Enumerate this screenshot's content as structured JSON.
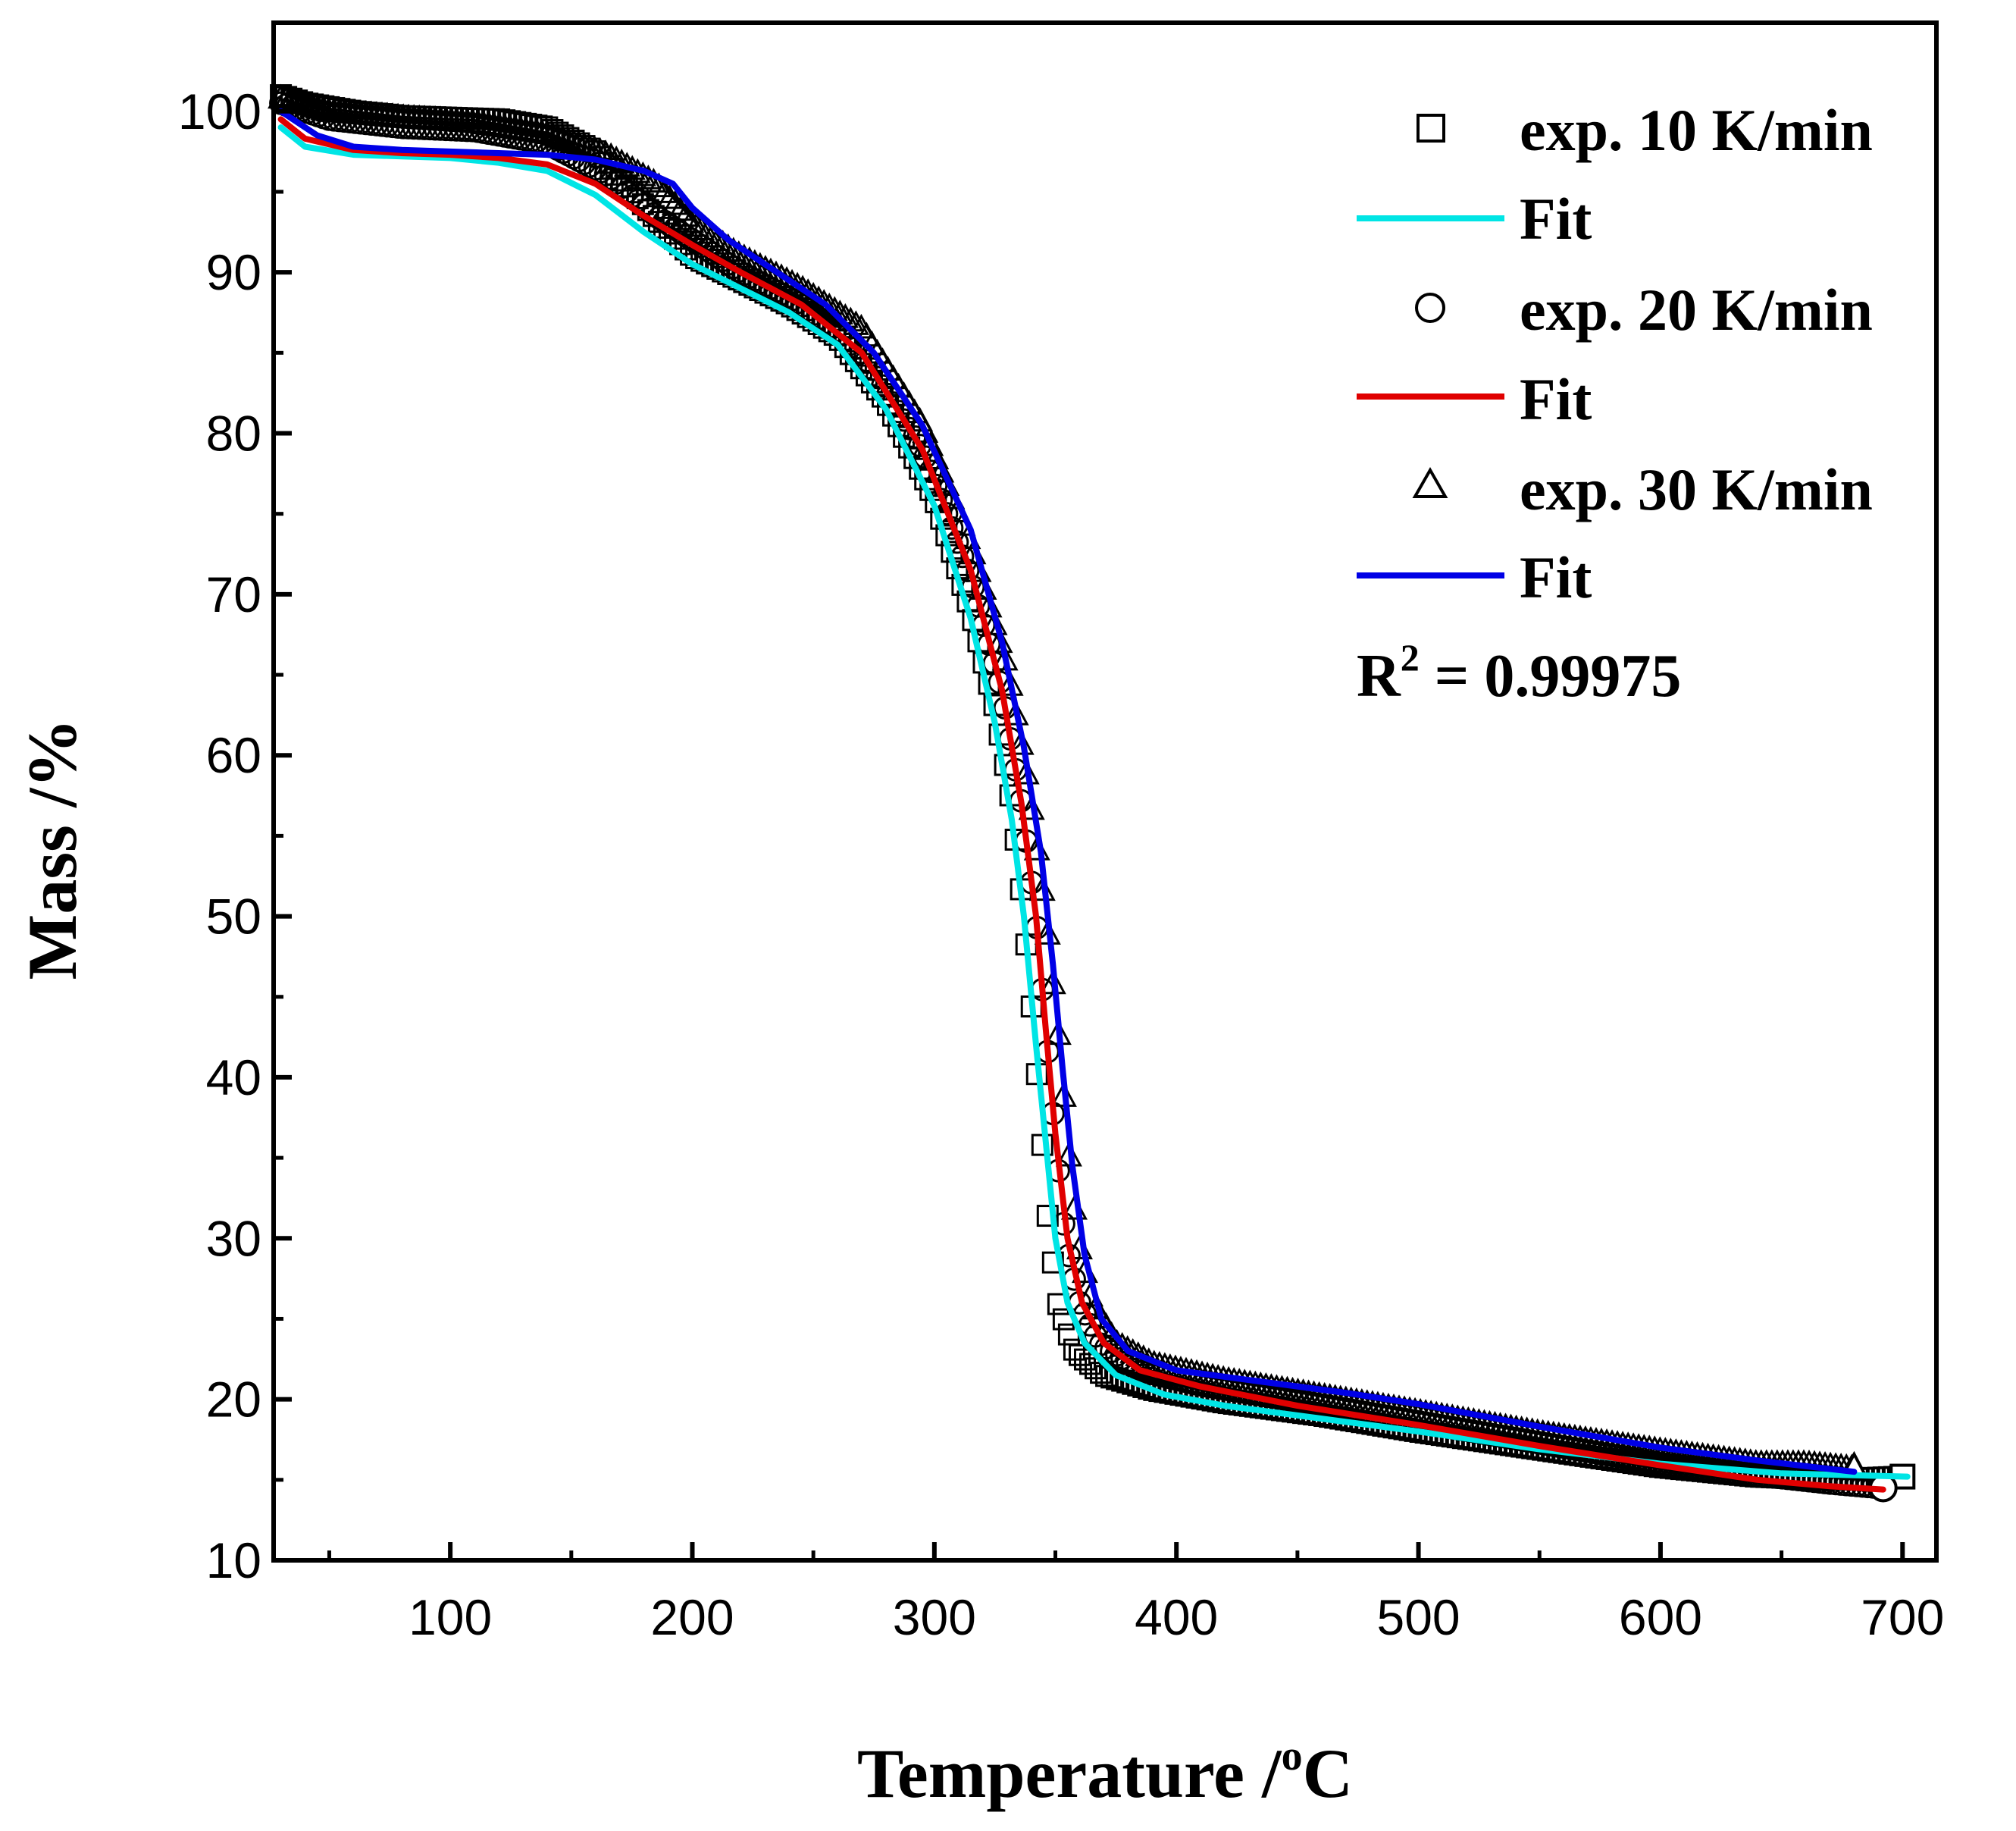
{
  "chart_data": {
    "type": "scatter",
    "title": "",
    "xlabel": {
      "main": "Temperature /",
      "sup": "o",
      "unit": "C"
    },
    "ylabel": "Mass /%",
    "xlim": [
      27,
      714
    ],
    "ylim": [
      10,
      105.5
    ],
    "xticks": [
      100,
      200,
      300,
      400,
      500,
      600,
      700
    ],
    "xticks_minor": [
      50,
      150,
      250,
      350,
      450,
      550,
      650
    ],
    "yticks": [
      10,
      20,
      30,
      40,
      50,
      60,
      70,
      80,
      90,
      100
    ],
    "grid": false,
    "legend_position": "top-right",
    "series": [
      {
        "name": "exp. 10 K/min",
        "kind": "markers",
        "marker": "square",
        "color": "#000000",
        "points": [
          [
            30,
            101
          ],
          [
            40,
            100.5
          ],
          [
            60,
            100
          ],
          [
            80,
            99.7
          ],
          [
            100,
            99.6
          ],
          [
            120,
            99.5
          ],
          [
            140,
            99
          ],
          [
            160,
            97.5
          ],
          [
            175,
            95
          ],
          [
            190,
            92.5
          ],
          [
            200,
            91
          ],
          [
            220,
            89.5
          ],
          [
            240,
            88
          ],
          [
            260,
            86
          ],
          [
            280,
            82
          ],
          [
            300,
            76
          ],
          [
            315,
            69
          ],
          [
            325,
            63
          ],
          [
            332,
            57
          ],
          [
            337,
            50
          ],
          [
            341,
            43
          ],
          [
            344,
            37
          ],
          [
            347,
            31
          ],
          [
            351,
            26
          ],
          [
            358,
            23
          ],
          [
            370,
            21.5
          ],
          [
            390,
            20.6
          ],
          [
            420,
            19.8
          ],
          [
            460,
            19
          ],
          [
            500,
            18
          ],
          [
            550,
            16.9
          ],
          [
            600,
            15.8
          ],
          [
            640,
            15.2
          ],
          [
            670,
            15
          ],
          [
            700,
            15.2
          ]
        ]
      },
      {
        "name": "Fit",
        "kind": "line",
        "color": "#00e5e5",
        "points": [
          [
            30,
            99
          ],
          [
            40,
            97.8
          ],
          [
            60,
            97.3
          ],
          [
            80,
            97.2
          ],
          [
            100,
            97.1
          ],
          [
            120,
            96.8
          ],
          [
            140,
            96.3
          ],
          [
            160,
            94.8
          ],
          [
            180,
            92.5
          ],
          [
            200,
            90.5
          ],
          [
            220,
            89
          ],
          [
            240,
            87.5
          ],
          [
            260,
            85.5
          ],
          [
            280,
            81.5
          ],
          [
            300,
            75.5
          ],
          [
            315,
            68.5
          ],
          [
            325,
            62
          ],
          [
            332,
            56
          ],
          [
            337,
            50
          ],
          [
            342,
            42
          ],
          [
            346,
            36
          ],
          [
            350,
            30
          ],
          [
            355,
            26
          ],
          [
            362,
            23.5
          ],
          [
            375,
            21.5
          ],
          [
            395,
            20.3
          ],
          [
            420,
            19.6
          ],
          [
            460,
            18.8
          ],
          [
            500,
            18
          ],
          [
            550,
            16.9
          ],
          [
            600,
            16
          ],
          [
            650,
            15.4
          ],
          [
            702,
            15.2
          ]
        ]
      },
      {
        "name": "exp. 20 K/min",
        "kind": "markers",
        "marker": "circle",
        "color": "#000000",
        "points": [
          [
            30,
            100.5
          ],
          [
            50,
            99.5
          ],
          [
            80,
            99
          ],
          [
            110,
            98.8
          ],
          [
            140,
            98
          ],
          [
            165,
            96
          ],
          [
            185,
            93.5
          ],
          [
            200,
            92
          ],
          [
            220,
            90
          ],
          [
            245,
            88
          ],
          [
            270,
            85
          ],
          [
            295,
            79
          ],
          [
            315,
            71
          ],
          [
            328,
            64
          ],
          [
            336,
            57
          ],
          [
            342,
            50
          ],
          [
            346,
            43
          ],
          [
            350,
            36
          ],
          [
            354,
            30
          ],
          [
            360,
            26
          ],
          [
            368,
            23.5
          ],
          [
            385,
            21.8
          ],
          [
            410,
            20.9
          ],
          [
            450,
            19.9
          ],
          [
            500,
            18.6
          ],
          [
            550,
            17.3
          ],
          [
            600,
            16
          ],
          [
            640,
            15.3
          ],
          [
            670,
            14.8
          ],
          [
            692,
            14.5
          ]
        ]
      },
      {
        "name": "Fit",
        "kind": "line",
        "color": "#e00000",
        "points": [
          [
            30,
            99.5
          ],
          [
            40,
            98.3
          ],
          [
            60,
            97.6
          ],
          [
            80,
            97.4
          ],
          [
            100,
            97.3
          ],
          [
            120,
            97.1
          ],
          [
            140,
            96.7
          ],
          [
            160,
            95.5
          ],
          [
            180,
            93.5
          ],
          [
            200,
            91.7
          ],
          [
            220,
            90
          ],
          [
            245,
            88
          ],
          [
            270,
            85
          ],
          [
            295,
            79
          ],
          [
            315,
            71.5
          ],
          [
            328,
            64
          ],
          [
            336,
            57
          ],
          [
            342,
            50
          ],
          [
            346,
            43
          ],
          [
            350,
            36.5
          ],
          [
            355,
            30
          ],
          [
            361,
            26
          ],
          [
            370,
            23.5
          ],
          [
            385,
            21.8
          ],
          [
            410,
            20.8
          ],
          [
            450,
            19.6
          ],
          [
            500,
            18.4
          ],
          [
            550,
            17.1
          ],
          [
            600,
            15.9
          ],
          [
            640,
            15
          ],
          [
            670,
            14.6
          ],
          [
            692,
            14.4
          ]
        ]
      },
      {
        "name": "exp. 30 K/min",
        "kind": "markers",
        "marker": "triangle",
        "color": "#000000",
        "points": [
          [
            30,
            100.8
          ],
          [
            50,
            100
          ],
          [
            80,
            99.6
          ],
          [
            110,
            99.3
          ],
          [
            140,
            98.6
          ],
          [
            165,
            97.3
          ],
          [
            185,
            95.5
          ],
          [
            200,
            93
          ],
          [
            220,
            91
          ],
          [
            245,
            89
          ],
          [
            270,
            86.5
          ],
          [
            295,
            80.5
          ],
          [
            315,
            73
          ],
          [
            330,
            65.5
          ],
          [
            339,
            58
          ],
          [
            346,
            50
          ],
          [
            351,
            43
          ],
          [
            355,
            36
          ],
          [
            359,
            30
          ],
          [
            365,
            26
          ],
          [
            375,
            23.5
          ],
          [
            390,
            22.2
          ],
          [
            420,
            21.2
          ],
          [
            460,
            20.2
          ],
          [
            500,
            19.2
          ],
          [
            550,
            17.9
          ],
          [
            600,
            16.8
          ],
          [
            640,
            16
          ],
          [
            660,
            16
          ],
          [
            680,
            15.7
          ]
        ]
      },
      {
        "name": "Fit",
        "kind": "line",
        "color": "#0000e6",
        "points": [
          [
            30,
            100
          ],
          [
            45,
            98.5
          ],
          [
            60,
            97.8
          ],
          [
            80,
            97.6
          ],
          [
            100,
            97.5
          ],
          [
            120,
            97.4
          ],
          [
            140,
            97.3
          ],
          [
            160,
            97
          ],
          [
            180,
            96.3
          ],
          [
            192,
            95.5
          ],
          [
            200,
            94
          ],
          [
            215,
            92
          ],
          [
            235,
            90
          ],
          [
            255,
            88
          ],
          [
            275,
            85
          ],
          [
            295,
            80.5
          ],
          [
            315,
            74
          ],
          [
            328,
            67
          ],
          [
            337,
            60.5
          ],
          [
            344,
            54
          ],
          [
            349,
            47
          ],
          [
            353,
            40.5
          ],
          [
            357,
            34.5
          ],
          [
            362,
            29
          ],
          [
            369,
            25
          ],
          [
            380,
            23
          ],
          [
            400,
            21.8
          ],
          [
            430,
            21.2
          ],
          [
            470,
            20.4
          ],
          [
            500,
            19.7
          ],
          [
            550,
            18.3
          ],
          [
            600,
            17
          ],
          [
            640,
            16.2
          ],
          [
            680,
            15.5
          ]
        ]
      }
    ],
    "annotation": {
      "text": "R",
      "sup": "2",
      "rest": " = 0.99975"
    }
  }
}
